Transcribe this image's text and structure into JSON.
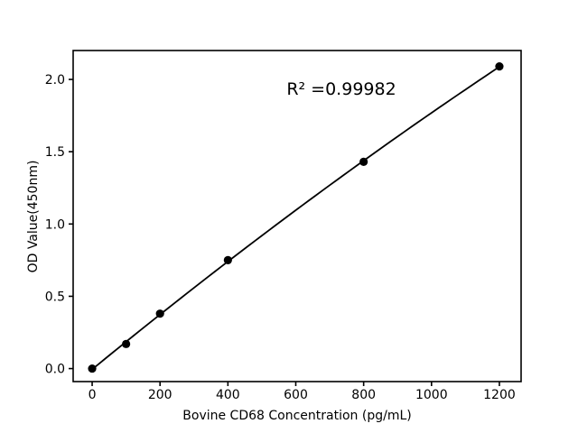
{
  "figure": {
    "background": "#ffffff"
  },
  "chart_data": {
    "type": "scatter",
    "x": [
      0,
      100,
      200,
      400,
      800,
      1200
    ],
    "y": [
      0.0,
      0.17,
      0.38,
      0.75,
      1.43,
      2.09
    ],
    "fit_line": {
      "kind": "quadratic",
      "r_squared": 0.99982
    },
    "annotation": "R² =0.99982",
    "title": "",
    "xlabel": "Bovine CD68 Concentration (pg/mL)",
    "ylabel": "OD Value(450nm)",
    "xlim": [
      -56,
      1264
    ],
    "ylim": [
      -0.09,
      2.2
    ],
    "xticks": {
      "values": [
        0,
        200,
        400,
        600,
        800,
        1000,
        1200
      ],
      "labels": [
        "0",
        "200",
        "400",
        "600",
        "800",
        "1000",
        "1200"
      ]
    },
    "yticks": {
      "values": [
        0,
        0.5,
        1,
        1.5,
        2
      ],
      "labels": [
        "0.0",
        "0.5",
        "1.0",
        "1.5",
        "2.0"
      ]
    },
    "grid": false,
    "legend": false,
    "marker": {
      "shape": "circle",
      "radius": 4.6
    },
    "colors": {
      "ink": "#000000",
      "background": "#ffffff"
    }
  }
}
